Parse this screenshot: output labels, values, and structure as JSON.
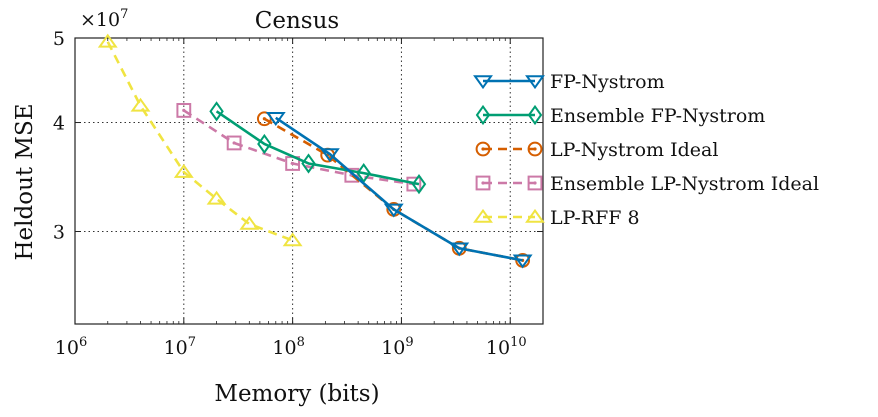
{
  "chart_data": {
    "type": "line",
    "title": "Census",
    "xlabel": "Memory (bits)",
    "ylabel": "Heldout MSE",
    "y_multiplier_label": "×10",
    "y_multiplier_exp": "7",
    "x_scale": "log",
    "y_scale": "log",
    "xlim": [
      1000000,
      20000000000
    ],
    "ylim": [
      23500000,
      50000000
    ],
    "x_ticks": [
      {
        "value": 1000000,
        "base": "10",
        "exp": "6"
      },
      {
        "value": 10000000,
        "base": "10",
        "exp": "7"
      },
      {
        "value": 100000000,
        "base": "10",
        "exp": "8"
      },
      {
        "value": 1000000000,
        "base": "10",
        "exp": "9"
      },
      {
        "value": 10000000000,
        "base": "10",
        "exp": "10"
      }
    ],
    "y_ticks": [
      {
        "value": 30000000,
        "label": "3"
      },
      {
        "value": 40000000,
        "label": "4"
      },
      {
        "value": 50000000,
        "label": "5"
      }
    ],
    "grid": true,
    "legend_position": "right",
    "series": [
      {
        "name": "FP-Nystrom",
        "color": "#0072B2",
        "marker": "triangle-down",
        "dash": "solid",
        "x": [
          70000000,
          220000000,
          850000000,
          3400000000,
          13000000000
        ],
        "y": [
          40500000,
          36800000,
          31800000,
          28700000,
          27800000
        ]
      },
      {
        "name": "Ensemble FP-Nystrom",
        "color": "#009E73",
        "marker": "diamond",
        "dash": "solid",
        "x": [
          20000000,
          55000000,
          140000000,
          450000000,
          1450000000
        ],
        "y": [
          41200000,
          37800000,
          35900000,
          35000000,
          34000000
        ]
      },
      {
        "name": "LP-Nystrom Ideal",
        "color": "#D55E00",
        "marker": "circle-dot",
        "dash": "dashed",
        "x": [
          55000000,
          210000000,
          850000000,
          3400000000,
          13000000000
        ],
        "y": [
          40400000,
          36700000,
          31800000,
          28700000,
          27800000
        ]
      },
      {
        "name": "Ensemble LP-Nystrom Ideal",
        "color": "#CC79A7",
        "marker": "square-dot",
        "dash": "dashed",
        "x": [
          10000000,
          29000000,
          100000000,
          350000000,
          1300000000
        ],
        "y": [
          41300000,
          37900000,
          35900000,
          34800000,
          34000000
        ]
      },
      {
        "name": "LP-RFF 8",
        "color": "#F0E442",
        "marker": "triangle-up",
        "dash": "dashed",
        "x": [
          2000000,
          4000000,
          10000000,
          20000000,
          40000000,
          100000000
        ],
        "y": [
          49500000,
          41800000,
          35100000,
          32700000,
          30600000,
          29300000
        ]
      }
    ]
  }
}
